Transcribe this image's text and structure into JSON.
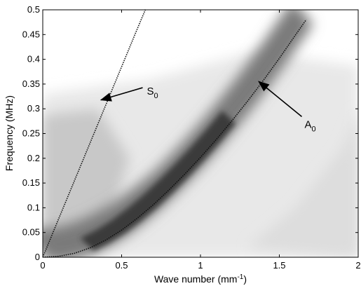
{
  "chart_data": {
    "type": "heatmap",
    "title": "",
    "xlabel": "Wave number",
    "xlabel_unit": "(mm",
    "xlabel_unit_exp": "-1",
    "xlabel_unit_close": ")",
    "ylabel": "Frequency (MHz)",
    "xlim": [
      0,
      2
    ],
    "ylim": [
      0,
      0.5
    ],
    "x_ticks": [
      0,
      0.5,
      1,
      1.5,
      2
    ],
    "x_tick_labels": [
      "0",
      "0.5",
      "1",
      "1.5",
      "2"
    ],
    "y_ticks": [
      0,
      0.05,
      0.1,
      0.15,
      0.2,
      0.25,
      0.3,
      0.35,
      0.4,
      0.45,
      0.5
    ],
    "y_tick_labels": [
      "0",
      "0.05",
      "0.1",
      "0.15",
      "0.2",
      "0.25",
      "0.3",
      "0.35",
      "0.4",
      "0.45",
      "0.5"
    ],
    "grid": false,
    "colormap": "grayscale (dark = high amplitude)",
    "series": [
      {
        "name": "S0",
        "x": [
          0,
          0.1,
          0.2,
          0.3,
          0.4,
          0.5,
          0.6,
          0.65
        ],
        "y": [
          0,
          0.077,
          0.154,
          0.231,
          0.308,
          0.385,
          0.462,
          0.5
        ]
      },
      {
        "name": "A0",
        "x": [
          0,
          0.1,
          0.2,
          0.3,
          0.4,
          0.5,
          0.6,
          0.7,
          0.8,
          0.9,
          1.0,
          1.1,
          1.2,
          1.3,
          1.4,
          1.5,
          1.6,
          1.67
        ],
        "y": [
          0,
          0.002,
          0.008,
          0.019,
          0.035,
          0.055,
          0.079,
          0.106,
          0.136,
          0.168,
          0.202,
          0.238,
          0.276,
          0.316,
          0.358,
          0.402,
          0.448,
          0.48
        ]
      }
    ],
    "annotations": [
      {
        "label": "S",
        "subscript": "0",
        "arrow_to": [
          0.37,
          0.318
        ],
        "text_at": [
          0.66,
          0.337
        ]
      },
      {
        "label": "A",
        "subscript": "0",
        "arrow_to": [
          1.37,
          0.355
        ],
        "text_at": [
          1.66,
          0.27
        ]
      }
    ]
  }
}
